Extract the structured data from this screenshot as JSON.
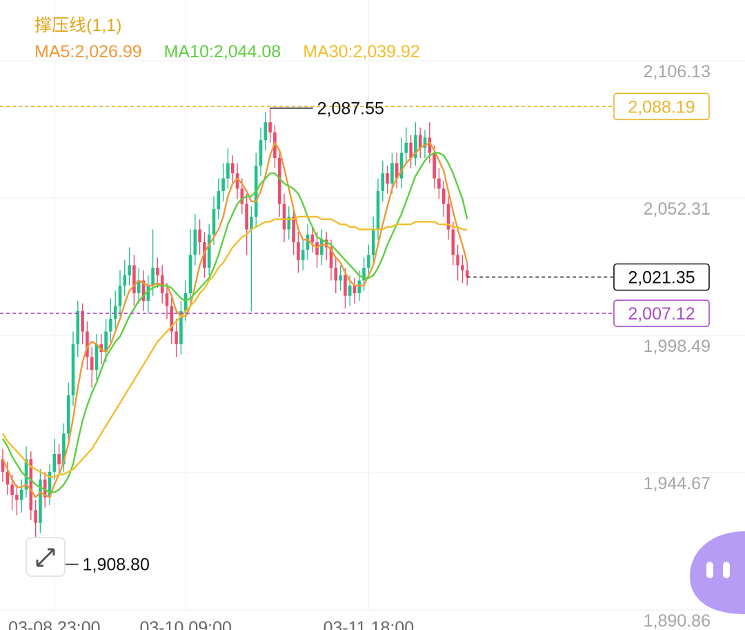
{
  "chart_data": {
    "type": "candlestick",
    "title": "撑压线(1,1)",
    "categories": [
      null,
      null,
      null,
      null,
      null,
      null,
      null,
      null,
      null,
      null,
      null,
      "03-08 23:00",
      null,
      null,
      null,
      null,
      null,
      null,
      null,
      null,
      null,
      null,
      null,
      null,
      null,
      null,
      null,
      null,
      null,
      null,
      null,
      null,
      null,
      null,
      null,
      null,
      null,
      null,
      null,
      "03-10 09:00",
      null,
      null,
      null,
      null,
      null,
      null,
      null,
      null,
      null,
      null,
      null,
      null,
      null,
      null,
      null,
      null,
      null,
      null,
      null,
      null,
      null,
      null,
      null,
      null,
      null,
      null,
      null,
      null,
      null,
      null,
      null,
      null,
      null,
      null,
      null,
      null,
      null,
      null,
      "03-11 18:00",
      null,
      null,
      null,
      null,
      null,
      null,
      null,
      null,
      null,
      null,
      null,
      null,
      null,
      null,
      null,
      null,
      null,
      null,
      null,
      null,
      null
    ],
    "open": [
      1950,
      1945,
      1940,
      1936,
      1934,
      1938,
      1950,
      1930,
      1925,
      1942,
      1935,
      1945,
      1952,
      1948,
      1960,
      1975,
      1995,
      2008,
      2000,
      1990,
      1985,
      1995,
      1992,
      2000,
      2005,
      2010,
      2018,
      2022,
      2026,
      2015,
      2020,
      2012,
      2018,
      2025,
      2022,
      2015,
      2010,
      2000,
      1995,
      2008,
      2015,
      2030,
      2040,
      2035,
      2025,
      2038,
      2048,
      2055,
      2060,
      2066,
      2062,
      2056,
      2050,
      2040,
      2045,
      2065,
      2075,
      2082,
      2078,
      2068,
      2050,
      2040,
      2045,
      2035,
      2028,
      2032,
      2038,
      2035,
      2030,
      2036,
      2033,
      2025,
      2020,
      2022,
      2014,
      2018,
      2015,
      2020,
      2025,
      2030,
      2040,
      2055,
      2062,
      2058,
      2066,
      2060,
      2070,
      2074,
      2068,
      2077,
      2072,
      2076,
      2070,
      2060,
      2056,
      2050,
      2040,
      2030,
      2026,
      2024
    ],
    "high": [
      1954,
      1949,
      1944,
      1940,
      1942,
      1955,
      1953,
      1934,
      1946,
      1945,
      1948,
      1958,
      1956,
      1964,
      1980,
      2000,
      2012,
      2011,
      2004,
      1994,
      1999,
      1999,
      2005,
      2013,
      2016,
      2024,
      2028,
      2033,
      2030,
      2025,
      2024,
      2022,
      2040,
      2029,
      2026,
      2019,
      2014,
      2005,
      2012,
      2020,
      2040,
      2046,
      2044,
      2039,
      2042,
      2053,
      2060,
      2066,
      2072,
      2069,
      2066,
      2060,
      2054,
      2049,
      2070,
      2080,
      2086,
      2087.55,
      2081,
      2071,
      2054,
      2049,
      2048,
      2039,
      2036,
      2042,
      2041,
      2039,
      2040,
      2039,
      2036,
      2029,
      2026,
      2025,
      2022,
      2021,
      2024,
      2029,
      2034,
      2045,
      2060,
      2067,
      2065,
      2070,
      2070,
      2076,
      2080,
      2077,
      2082,
      2080,
      2079,
      2082,
      2073,
      2064,
      2059,
      2053,
      2043,
      2034,
      2030,
      2027
    ],
    "low": [
      1941,
      1936,
      1930,
      1928,
      1929,
      1935,
      1926,
      1908.8,
      1921,
      1931,
      1932,
      1942,
      1944,
      1945,
      1956,
      1971,
      1990,
      1995,
      1985,
      1978,
      1981,
      1987,
      1988,
      1996,
      2001,
      2006,
      2014,
      2018,
      2010,
      2011,
      2008,
      2007,
      2014,
      2017,
      2011,
      2005,
      1995,
      1990,
      1991,
      2004,
      2011,
      2026,
      2030,
      2021,
      2022,
      2034,
      2044,
      2051,
      2056,
      2058,
      2052,
      2046,
      2030,
      2008,
      2041,
      2061,
      2071,
      2074,
      2064,
      2045,
      2035,
      2036,
      2030,
      2023,
      2024,
      2028,
      2031,
      2025,
      2026,
      2028,
      2020,
      2015,
      2016,
      2009,
      2010,
      2011,
      2012,
      2016,
      2021,
      2026,
      2036,
      2051,
      2054,
      2054,
      2056,
      2056,
      2066,
      2064,
      2065,
      2068,
      2068,
      2066,
      2056,
      2052,
      2045,
      2036,
      2026,
      2020,
      2019,
      2018
    ],
    "close": [
      1945,
      1940,
      1936,
      1934,
      1938,
      1950,
      1930,
      1925,
      1942,
      1935,
      1945,
      1952,
      1948,
      1960,
      1975,
      1995,
      2008,
      2000,
      1990,
      1985,
      1995,
      1992,
      2000,
      2005,
      2010,
      2018,
      2022,
      2026,
      2015,
      2020,
      2012,
      2018,
      2025,
      2022,
      2015,
      2010,
      2000,
      1995,
      2008,
      2015,
      2030,
      2040,
      2035,
      2025,
      2038,
      2048,
      2055,
      2060,
      2066,
      2062,
      2056,
      2050,
      2040,
      2045,
      2065,
      2075,
      2082,
      2078,
      2068,
      2050,
      2040,
      2045,
      2035,
      2028,
      2032,
      2038,
      2035,
      2030,
      2036,
      2033,
      2025,
      2020,
      2022,
      2014,
      2018,
      2015,
      2020,
      2025,
      2030,
      2040,
      2055,
      2062,
      2058,
      2066,
      2060,
      2070,
      2074,
      2068,
      2077,
      2072,
      2076,
      2070,
      2060,
      2056,
      2050,
      2040,
      2030,
      2026,
      2024,
      2021.35
    ],
    "up_color": "#22c08a",
    "down_color": "#ea4d6c",
    "series": [
      {
        "name": "MA5:2,026.99",
        "color": "#ef9836",
        "values": [
          1950,
          1946,
          1942,
          1939,
          1939,
          1940,
          1938,
          1935,
          1937,
          1936,
          1935,
          1940,
          1944,
          1949,
          1956,
          1966,
          1978,
          1988,
          1994,
          1996,
          1995,
          1993,
          1992,
          1995,
          2000,
          2005,
          2011,
          2016,
          2018,
          2020,
          2019,
          2018,
          2018,
          2019,
          2018,
          2018,
          2014,
          2008,
          2006,
          2006,
          2010,
          2018,
          2026,
          2031,
          2034,
          2037,
          2040,
          2045,
          2053,
          2058,
          2060,
          2058,
          2055,
          2051,
          2051,
          2055,
          2061,
          2069,
          2074,
          2071,
          2064,
          2056,
          2048,
          2040,
          2036,
          2036,
          2034,
          2033,
          2034,
          2034,
          2032,
          2029,
          2027,
          2023,
          2020,
          2018,
          2018,
          2018,
          2022,
          2026,
          2034,
          2042,
          2049,
          2056,
          2060,
          2063,
          2066,
          2068,
          2070,
          2072,
          2073,
          2074,
          2071,
          2067,
          2063,
          2055,
          2047,
          2040,
          2034,
          2026.99
        ]
      },
      {
        "name": "MA10:2,044.08",
        "color": "#5ccf3f",
        "values": [
          1958,
          1955,
          1951,
          1948,
          1945,
          1943,
          1942,
          1940,
          1939,
          1938,
          1937,
          1937,
          1938,
          1940,
          1943,
          1948,
          1957,
          1965,
          1971,
          1976,
          1980,
          1985,
          1990,
          1993,
          1996,
          1998,
          2002,
          2006,
          2009,
          2012,
          2014,
          2016,
          2017,
          2018,
          2018,
          2018,
          2017,
          2015,
          2013,
          2012,
          2013,
          2015,
          2017,
          2019,
          2021,
          2025,
          2030,
          2036,
          2042,
          2046,
          2050,
          2052,
          2053,
          2053,
          2055,
          2058,
          2060,
          2062,
          2062,
          2060,
          2058,
          2057,
          2056,
          2054,
          2050,
          2045,
          2041,
          2037,
          2036,
          2035,
          2034,
          2032,
          2030,
          2028,
          2026,
          2024,
          2022,
          2021,
          2021,
          2022,
          2025,
          2029,
          2034,
          2038,
          2042,
          2046,
          2051,
          2056,
          2061,
          2064,
          2067,
          2069,
          2070,
          2070,
          2069,
          2066,
          2062,
          2057,
          2052,
          2044.08
        ]
      },
      {
        "name": "MA30:2,039.92",
        "color": "#f2bd2b",
        "values": [
          1960,
          1957,
          1955,
          1953,
          1951,
          1949,
          1947,
          1946,
          1945,
          1944,
          1943,
          1943,
          1944,
          1944,
          1945,
          1946,
          1948,
          1950,
          1952,
          1954,
          1957,
          1960,
          1963,
          1966,
          1969,
          1972,
          1975,
          1978,
          1981,
          1984,
          1987,
          1990,
          1993,
          1996,
          1998,
          2000,
          2002,
          2004,
          2006,
          2008,
          2010,
          2012,
          2015,
          2017,
          2020,
          2022,
          2025,
          2027,
          2030,
          2033,
          2035,
          2037,
          2038,
          2040,
          2041,
          2042,
          2043,
          2043,
          2044,
          2044,
          2044,
          2044,
          2044,
          2045,
          2045,
          2045,
          2045,
          2045,
          2044,
          2044,
          2044,
          2043,
          2042,
          2042,
          2041,
          2041,
          2040,
          2040,
          2040,
          2040,
          2040,
          2040,
          2041,
          2041,
          2042,
          2042,
          2042,
          2042,
          2043,
          2043,
          2043,
          2043,
          2043,
          2042,
          2042,
          2042,
          2041,
          2041,
          2040,
          2039.92
        ]
      }
    ],
    "ylim": [
      1890.86,
      2129.93
    ],
    "yticks": [
      {
        "value": 1890.86,
        "label": "1,890.86"
      },
      {
        "value": 1944.67,
        "label": "1,944.67"
      },
      {
        "value": 1998.49,
        "label": "1,998.49"
      },
      {
        "value": 2052.31,
        "label": "2,052.31"
      },
      {
        "value": 2106.13,
        "label": "2,106.13"
      }
    ],
    "grid": true,
    "price_lines": [
      {
        "value": 2088.19,
        "label": "2,088.19",
        "color": "#e9b52a",
        "kind": "resistance"
      },
      {
        "value": 2007.12,
        "label": "2,007.12",
        "color": "#a64bc4",
        "kind": "support"
      },
      {
        "value": 2021.35,
        "label": "2,021.35",
        "color": "#111111",
        "kind": "last"
      }
    ],
    "annotations": [
      {
        "value": 2087.55,
        "label": "2,087.55",
        "kind": "high"
      },
      {
        "value": 1908.8,
        "label": "1,908.80",
        "kind": "low"
      }
    ]
  }
}
